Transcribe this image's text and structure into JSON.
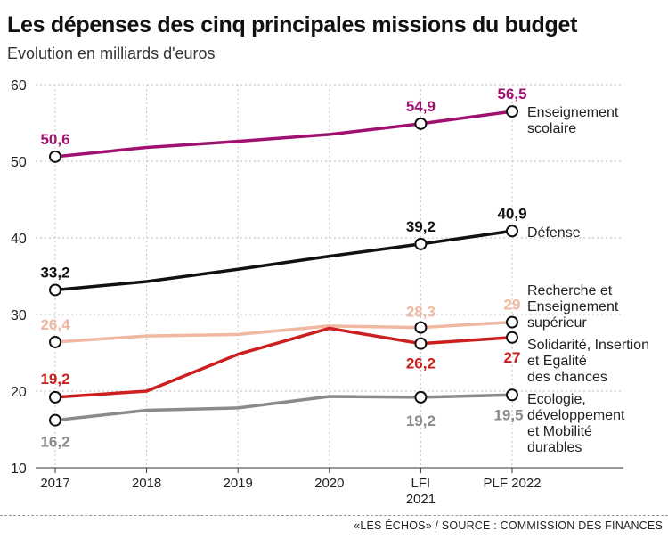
{
  "header": {
    "title": "Les dépenses des cinq principales missions du budget",
    "subtitle": "Evolution en milliards d'euros"
  },
  "footer": {
    "source": "«LES ÉCHOS» / SOURCE : COMMISSION DES FINANCES"
  },
  "chart_data": {
    "type": "line",
    "categories": [
      "2017",
      "2018",
      "2019",
      "2020",
      "LFI\n2021",
      "PLF 2022"
    ],
    "ylim": [
      10,
      60
    ],
    "yticks": [
      10,
      20,
      30,
      40,
      50,
      60
    ],
    "grid": true,
    "series": [
      {
        "name": "Enseignement\nscolaire",
        "color": "#a0106e",
        "values": [
          50.6,
          51.8,
          52.6,
          53.5,
          54.9,
          56.5
        ],
        "labels": [
          "50,6",
          null,
          null,
          null,
          "54,9",
          "56,5"
        ],
        "markers": [
          0,
          4,
          5
        ]
      },
      {
        "name": "Défense",
        "color": "#111111",
        "values": [
          33.2,
          34.3,
          35.9,
          37.6,
          39.2,
          40.9
        ],
        "labels": [
          "33,2",
          null,
          null,
          null,
          "39,2",
          "40,9"
        ],
        "markers": [
          0,
          4,
          5
        ]
      },
      {
        "name": "Recherche et\nEnseignement\nsupérieur",
        "color": "#f0b8a0",
        "values": [
          26.4,
          27.2,
          27.4,
          28.5,
          28.3,
          29
        ],
        "labels": [
          "26,4",
          null,
          null,
          null,
          "28,3",
          "29"
        ],
        "markers": [
          0,
          4,
          5
        ]
      },
      {
        "name": "Solidarité, Insertion\net Egalité\ndes chances",
        "color": "#cc1f1f",
        "values": [
          19.2,
          20,
          24.8,
          28.2,
          26.2,
          27
        ],
        "labels": [
          "19,2",
          null,
          null,
          null,
          "26,2",
          "27"
        ],
        "markers": [
          0,
          4,
          5
        ]
      },
      {
        "name": "Ecologie,\ndéveloppement\net Mobilité\ndurables",
        "color": "#8a8a8a",
        "values": [
          16.2,
          17.5,
          17.8,
          19.3,
          19.2,
          19.5
        ],
        "labels": [
          "16,2",
          null,
          null,
          null,
          "19,2",
          "19,5"
        ],
        "markers": [
          0,
          4,
          5
        ]
      }
    ]
  }
}
